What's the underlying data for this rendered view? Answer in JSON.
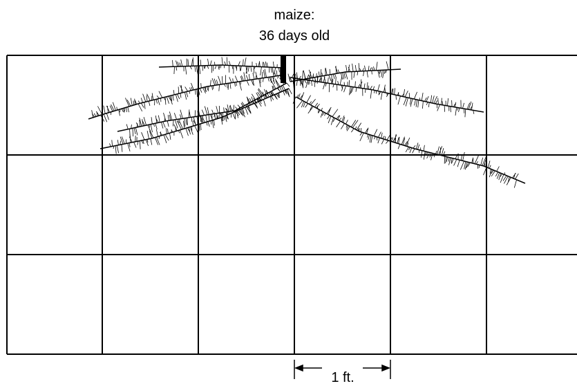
{
  "title": {
    "line1": "maize:",
    "line2": "36 days old"
  },
  "scale_bar": {
    "label": "1 ft."
  }
}
